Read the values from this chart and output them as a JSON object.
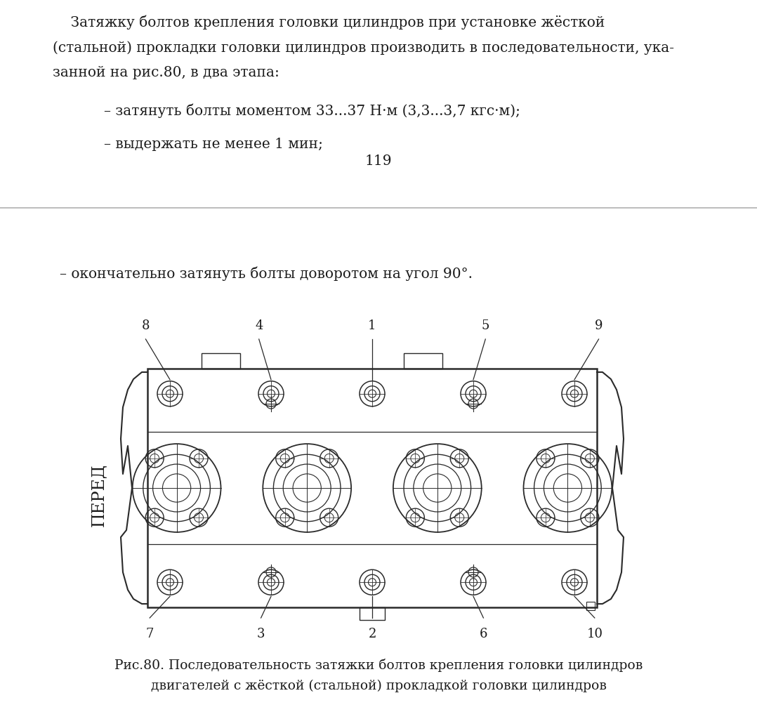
{
  "bg_color": "#ffffff",
  "separator_color": "#b0b0b0",
  "text_color": "#1a1a1a",
  "line_color": "#2a2a2a",
  "para_lines": [
    "    Затяжку болтов крепления головки цилиндров при установке жёсткой",
    "(стальной) прокладки головки цилиндров производить в последовательности, ука-",
    "занной на рис.80, в два этапа:"
  ],
  "bullet1": "– затянуть болты моментом 33...37 Н·м (3,3...3,7 кгс·м);",
  "bullet2": "– выдержать не менее 1 мин;",
  "page_number": "119",
  "bottom_bullet": "– окончательно затянуть болты доворотом на угол 90°.",
  "caption_line1": "Рис.80. Последовательность затяжки болтов крепления головки цилиндров",
  "caption_line2": "двигателей с жёсткой (стальной) прокладкой головки цилиндров",
  "pered_label": "ПЕРЕД",
  "top_numbers": [
    "8",
    "4",
    "1",
    "5",
    "9"
  ],
  "bottom_numbers": [
    "7",
    "3",
    "2",
    "6",
    "10"
  ],
  "font_size_main": 14.5,
  "font_size_caption": 13.5,
  "font_size_diagram": 13.0
}
